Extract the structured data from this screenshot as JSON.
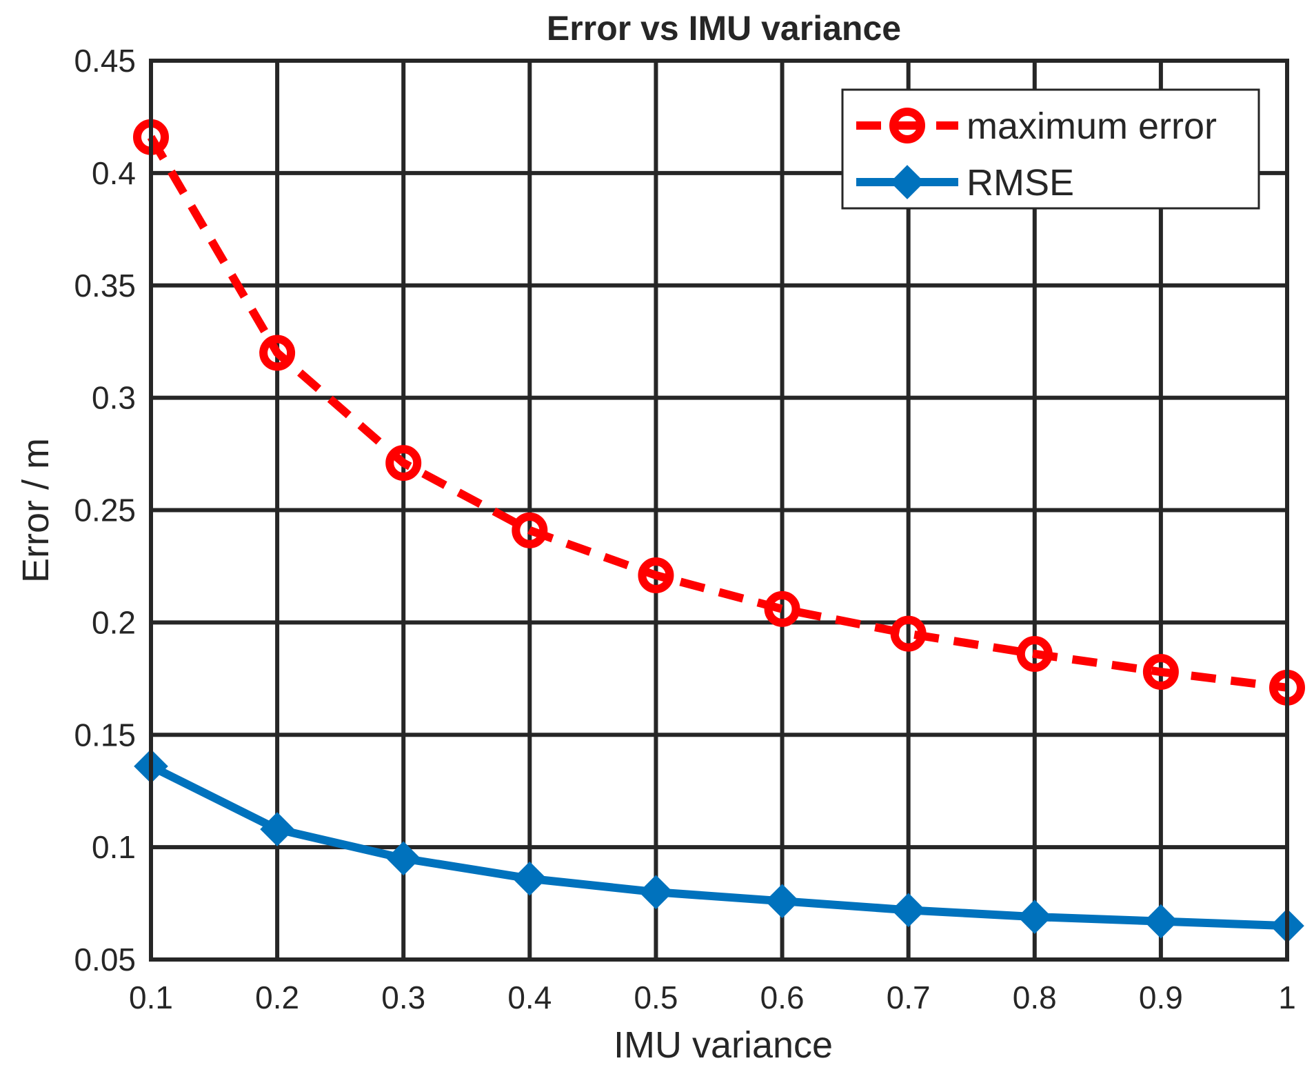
{
  "chart_data": {
    "type": "line",
    "title": "Error vs IMU variance",
    "xlabel": "IMU variance",
    "ylabel": "Error / m",
    "x": [
      0.1,
      0.2,
      0.3,
      0.4,
      0.5,
      0.6,
      0.7,
      0.8,
      0.9,
      1.0
    ],
    "xlim": [
      0.1,
      1.0
    ],
    "ylim": [
      0.05,
      0.45
    ],
    "x_ticks": [
      "0.1",
      "0.2",
      "0.3",
      "0.4",
      "0.5",
      "0.6",
      "0.7",
      "0.8",
      "0.9",
      "1"
    ],
    "y_ticks": [
      "0.05",
      "0.1",
      "0.15",
      "0.2",
      "0.25",
      "0.3",
      "0.35",
      "0.4",
      "0.45"
    ],
    "grid": true,
    "legend_position": "top-right",
    "series": [
      {
        "name": "maximum error",
        "color": "#ff0000",
        "line_style": "dashed",
        "marker": "circle",
        "values": [
          0.416,
          0.32,
          0.271,
          0.241,
          0.221,
          0.206,
          0.195,
          0.186,
          0.178,
          0.171
        ]
      },
      {
        "name": "RMSE",
        "color": "#0072bd",
        "line_style": "solid",
        "marker": "diamond",
        "values": [
          0.136,
          0.108,
          0.095,
          0.086,
          0.08,
          0.076,
          0.072,
          0.069,
          0.067,
          0.065
        ]
      }
    ]
  }
}
